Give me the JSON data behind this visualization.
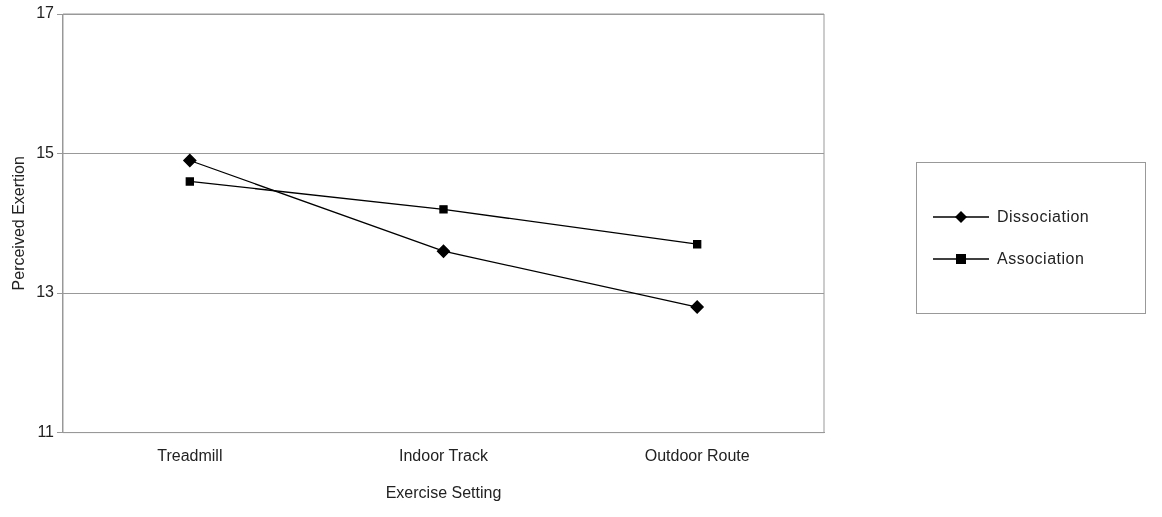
{
  "chart_data": {
    "type": "line",
    "xlabel": "Exercise Setting",
    "ylabel": "Perceived Exertion",
    "categories": [
      "Treadmill",
      "Indoor Track",
      "Outdoor Route"
    ],
    "series": [
      {
        "name": "Dissociation",
        "color": "#000000",
        "marker": "diamond",
        "values": [
          14.9,
          13.6,
          12.8
        ]
      },
      {
        "name": "Association",
        "color": "#000000",
        "marker": "square",
        "values": [
          14.6,
          14.2,
          13.7
        ]
      }
    ],
    "ylim": [
      11,
      17
    ],
    "yticks": [
      11,
      13,
      15,
      17
    ],
    "grid": "y",
    "legend": "right",
    "line_style": "solid"
  }
}
